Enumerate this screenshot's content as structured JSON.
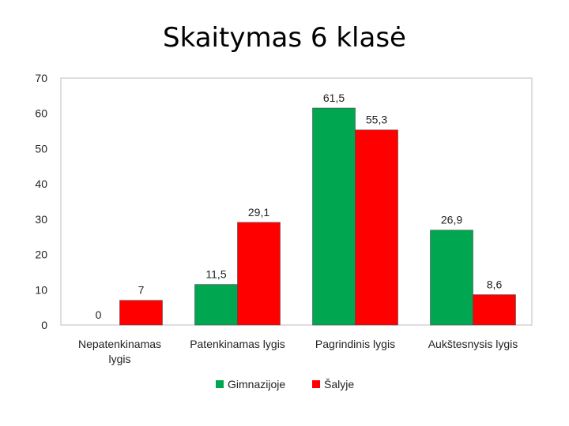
{
  "chart_data": {
    "type": "bar",
    "title": "Skaitymas 6 klasė",
    "categories": [
      [
        "Nepatenkinamas",
        "lygis"
      ],
      [
        "Patenkinamas lygis"
      ],
      [
        "Pagrindinis lygis"
      ],
      [
        "Aukštesnysis lygis"
      ]
    ],
    "series": [
      {
        "name": "Gimnazijoje",
        "color": "#00a650",
        "values": [
          0,
          11.5,
          61.5,
          26.9
        ],
        "labels": [
          "0",
          "11,5",
          "61,5",
          "26,9"
        ]
      },
      {
        "name": "Šalyje",
        "color": "#ff0000",
        "values": [
          7,
          29.1,
          55.3,
          8.6
        ],
        "labels": [
          "7",
          "29,1",
          "55,3",
          "8,6"
        ]
      }
    ],
    "ylim": [
      0,
      70
    ],
    "yticks": [
      0,
      10,
      20,
      30,
      40,
      50,
      60,
      70
    ],
    "grid": false,
    "legend": "bottom"
  }
}
